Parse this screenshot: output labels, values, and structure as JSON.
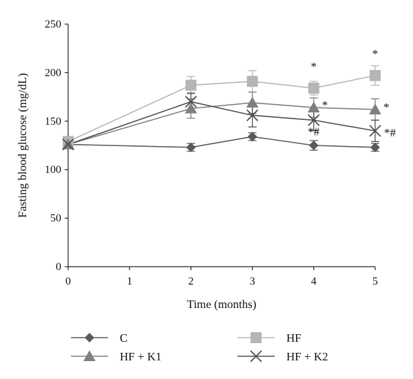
{
  "chart_data": {
    "type": "line",
    "xlabel": "Time (months)",
    "ylabel": "Fasting blood glucose (mg/dL)",
    "xlim": [
      0,
      5
    ],
    "ylim": [
      0,
      250
    ],
    "xticks": [
      0,
      1,
      2,
      3,
      4,
      5
    ],
    "yticks": [
      0,
      50,
      100,
      150,
      200,
      250
    ],
    "grid": false,
    "legend_position": "bottom",
    "series": [
      {
        "name": "C",
        "color": "#5a5a5a",
        "marker": "diamond",
        "x": [
          0,
          2,
          3,
          4,
          5
        ],
        "y": [
          126,
          123,
          134,
          125,
          123
        ],
        "err": [
          3,
          4,
          4,
          5,
          4
        ]
      },
      {
        "name": "HF",
        "color": "#b5b5b5",
        "marker": "square",
        "x": [
          0,
          2,
          3,
          4,
          5
        ],
        "y": [
          129,
          187,
          191,
          184,
          197
        ],
        "err": [
          3,
          9,
          11,
          7,
          10
        ]
      },
      {
        "name": "HF + K1",
        "color": "#7f7f7f",
        "marker": "triangle",
        "x": [
          0,
          2,
          3,
          4,
          5
        ],
        "y": [
          126,
          163,
          169,
          164,
          162
        ],
        "err": [
          3,
          10,
          11,
          10,
          11
        ]
      },
      {
        "name": "HF + K2",
        "color": "#4d4d4d",
        "marker": "x",
        "x": [
          0,
          2,
          3,
          4,
          5
        ],
        "y": [
          126,
          170,
          156,
          151,
          140
        ],
        "err": [
          3,
          9,
          12,
          11,
          11
        ]
      }
    ],
    "annotations": [
      {
        "x": 4,
        "y": 184,
        "text": "*",
        "series": "HF"
      },
      {
        "x": 5,
        "y": 197,
        "text": "*",
        "series": "HF"
      },
      {
        "x": 4,
        "y": 164,
        "text": "*",
        "series": "HF + K1"
      },
      {
        "x": 5,
        "y": 162,
        "text": "*",
        "series": "HF + K1"
      },
      {
        "x": 4,
        "y": 151,
        "text": "*#",
        "series": "HF + K2"
      },
      {
        "x": 5,
        "y": 140,
        "text": "*#",
        "series": "HF + K2"
      }
    ]
  }
}
